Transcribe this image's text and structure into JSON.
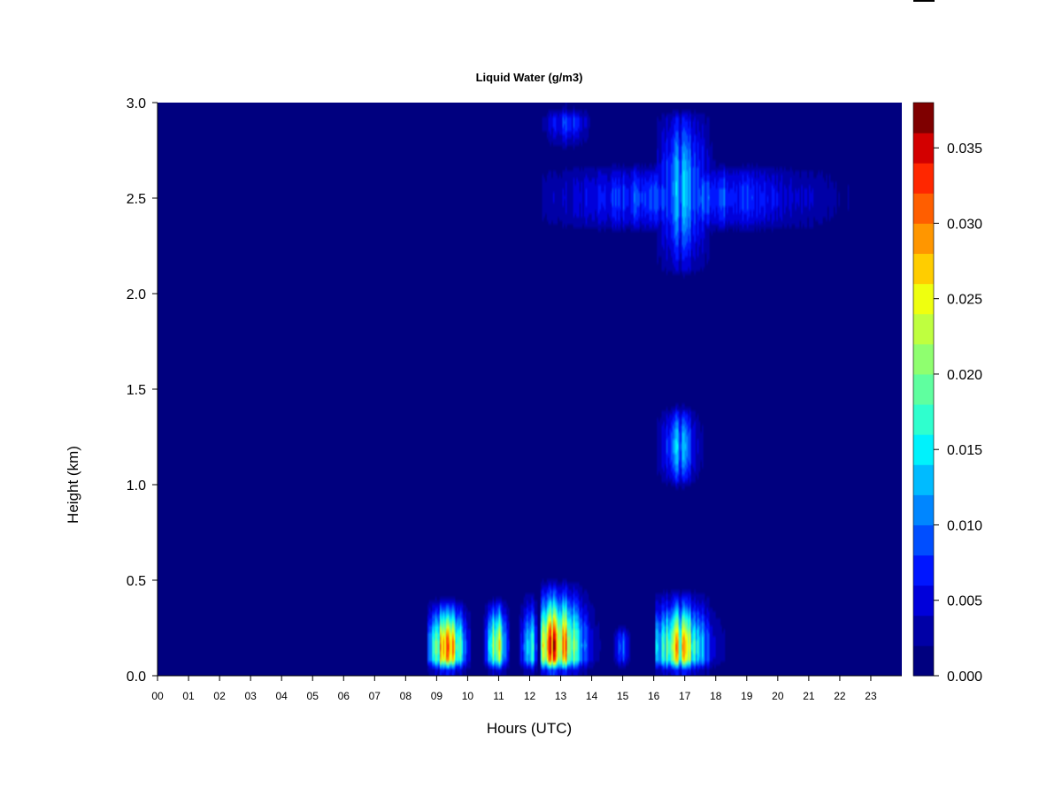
{
  "chart_data": {
    "type": "heatmap",
    "title": "Liquid Water (g/m3)",
    "xlabel": "Hours (UTC)",
    "ylabel": "Height (km)",
    "x_ticks": [
      "00",
      "01",
      "02",
      "03",
      "04",
      "05",
      "06",
      "07",
      "08",
      "09",
      "10",
      "11",
      "12",
      "13",
      "14",
      "15",
      "16",
      "17",
      "18",
      "19",
      "20",
      "21",
      "22",
      "23"
    ],
    "xlim": [
      0,
      24
    ],
    "y_ticks": [
      "0.0",
      "0.5",
      "1.0",
      "1.5",
      "2.0",
      "2.5",
      "3.0"
    ],
    "ylim": [
      0.0,
      3.0
    ],
    "colorbar": {
      "ticks": [
        "0.000",
        "0.005",
        "0.010",
        "0.015",
        "0.020",
        "0.025",
        "0.030",
        "0.035"
      ],
      "range": [
        0.0,
        0.038
      ],
      "levels": 19,
      "colors": [
        "#00007f",
        "#0000a6",
        "#0000da",
        "#0016ff",
        "#004eff",
        "#0086ff",
        "#00bbff",
        "#00f2fc",
        "#2fffce",
        "#5fff9f",
        "#8fff6f",
        "#bfff3f",
        "#efff0f",
        "#ffcd00",
        "#ff9600",
        "#ff5e00",
        "#ff2700",
        "#d30000",
        "#7f0000"
      ]
    },
    "cloud_features": [
      {
        "hour_start": 8.7,
        "hour_end": 10.1,
        "height_top": 0.45,
        "peak": 0.036,
        "peak_hour": 9.35,
        "peak_height": 0.15
      },
      {
        "hour_start": 10.5,
        "hour_end": 11.35,
        "height_top": 0.45,
        "peak": 0.029,
        "peak_hour": 10.95,
        "peak_height": 0.16
      },
      {
        "hour_start": 11.6,
        "hour_end": 12.25,
        "height_top": 0.5,
        "peak": 0.022,
        "peak_hour": 12.0,
        "peak_height": 0.15
      },
      {
        "hour_start": 12.35,
        "hour_end": 14.5,
        "height_top": 0.55,
        "peak": 0.038,
        "peak_hour": 12.85,
        "peak_height": 0.16
      },
      {
        "hour_start": 14.65,
        "hour_end": 15.25,
        "height_top": 0.3,
        "peak": 0.012,
        "peak_hour": 15.0,
        "peak_height": 0.15
      },
      {
        "hour_start": 16.05,
        "hour_end": 18.4,
        "height_top": 0.5,
        "peak": 0.031,
        "peak_hour": 16.8,
        "peak_height": 0.15
      },
      {
        "hour_start": 16.1,
        "hour_end": 17.6,
        "height_top": 1.45,
        "height_bottom": 0.95,
        "peak": 0.015,
        "peak_hour": 16.8,
        "peak_height": 1.2
      },
      {
        "hour_start": 12.4,
        "hour_end": 22.8,
        "height_top": 2.72,
        "height_bottom": 2.28,
        "peak": 0.012,
        "peak_hour": 17.0,
        "peak_height": 2.5
      },
      {
        "hour_start": 16.1,
        "hour_end": 18.3,
        "height_top": 3.0,
        "height_bottom": 2.05,
        "peak": 0.015,
        "peak_hour": 16.9,
        "peak_height": 2.55
      },
      {
        "hour_start": 12.4,
        "hour_end": 14.1,
        "height_top": 3.0,
        "height_bottom": 2.7,
        "peak": 0.01,
        "peak_hour": 13.2,
        "peak_height": 2.9
      }
    ]
  }
}
